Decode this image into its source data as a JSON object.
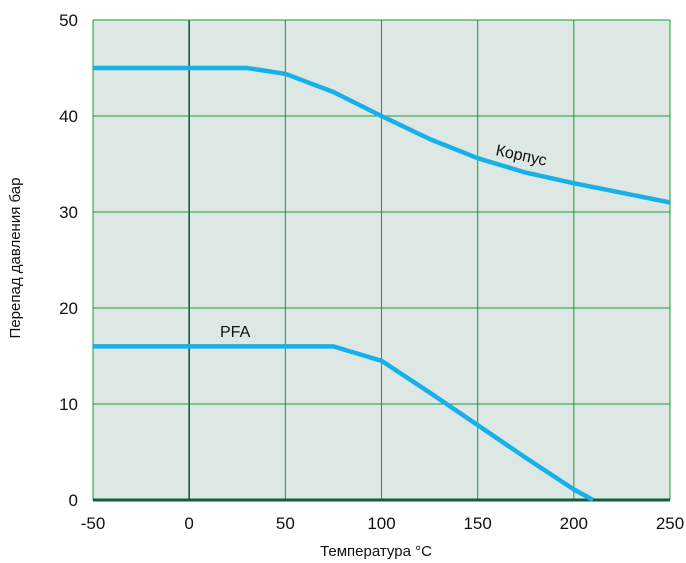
{
  "chart_data": {
    "type": "line",
    "xlabel": "Температура °C",
    "ylabel": "Перепад давления бар",
    "xlim": [
      -50,
      250
    ],
    "ylim": [
      0,
      50
    ],
    "xticks": [
      -50,
      0,
      50,
      100,
      150,
      200,
      250
    ],
    "yticks": [
      0,
      10,
      20,
      30,
      40,
      50
    ],
    "x_tick_labels": [
      "-50",
      "0",
      "50",
      "100",
      "150",
      "200",
      "250"
    ],
    "y_tick_labels": [
      "0",
      "10",
      "20",
      "30",
      "40",
      "50"
    ],
    "grid": true,
    "series": [
      {
        "name": "Корпус",
        "x": [
          -50,
          0,
          30,
          50,
          75,
          100,
          125,
          150,
          175,
          200,
          225,
          250
        ],
        "y": [
          45,
          45,
          45,
          44.4,
          42.5,
          40,
          37.6,
          35.6,
          34.1,
          33.0,
          32.0,
          31.0
        ]
      },
      {
        "name": "PFA",
        "x": [
          -50,
          0,
          50,
          75,
          100,
          125,
          150,
          175,
          200,
          210
        ],
        "y": [
          16,
          16,
          16,
          16,
          14.5,
          11.2,
          7.8,
          4.4,
          1.1,
          0
        ]
      }
    ],
    "colors": {
      "plot_background": "#dde8e4",
      "grid": "#1a9a3a",
      "zero_line": "#0f5e38",
      "series_line": "#17b0e8"
    }
  }
}
